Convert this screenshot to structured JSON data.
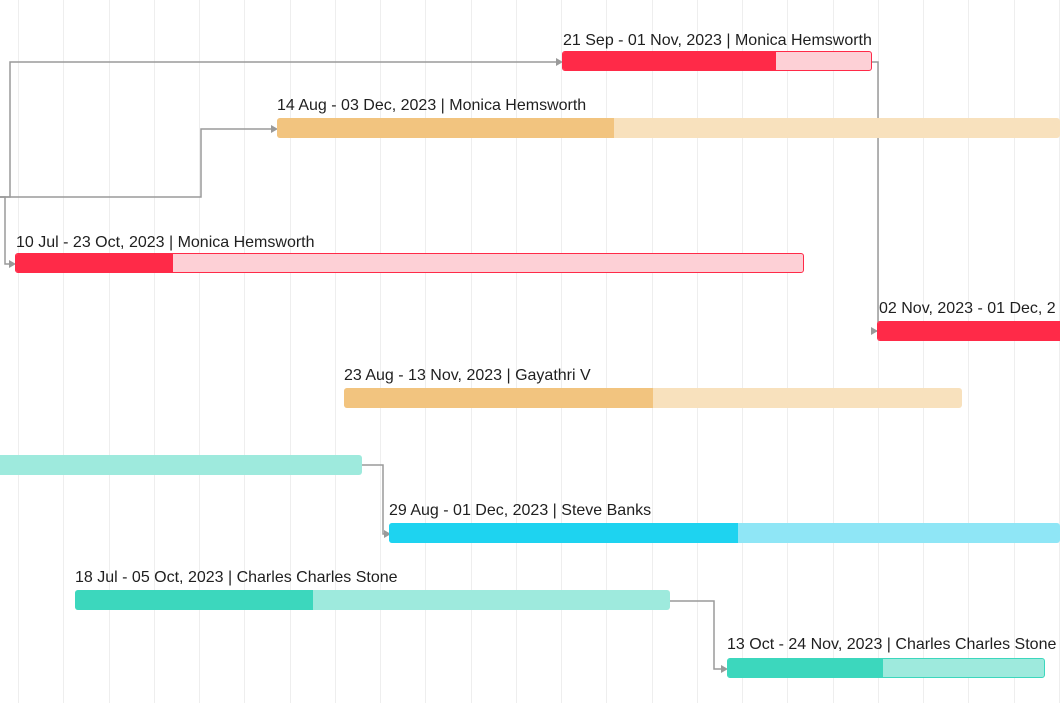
{
  "colors": {
    "red": "#ff2a48",
    "red_light": "#fdd0d6",
    "orange": "#f2c47f",
    "orange_light": "#f8e1bd",
    "teal": "#3cd7bd",
    "teal_light": "#9eeadd",
    "cyan": "#1ed3f0",
    "cyan_light": "#8fe6f6",
    "connector": "#9a9a9a",
    "gridline": "#eeeeee"
  },
  "tasks": [
    {
      "label": "21 Sep - 01 Nov, 2023 | Monica Hemsworth",
      "progress_percent": 69
    },
    {
      "label": "14 Aug - 03 Dec, 2023 | Monica Hemsworth",
      "progress_percent": 43
    },
    {
      "label": "10 Jul - 23 Oct, 2023 | Monica Hemsworth",
      "progress_percent": 20
    },
    {
      "label": "02 Nov, 2023 - 01 Dec, 2",
      "progress_percent": 100
    },
    {
      "label": "23 Aug - 13 Nov, 2023 | Gayathri V",
      "progress_percent": 50
    },
    {
      "label": "",
      "progress_percent": 0
    },
    {
      "label": "29 Aug - 01 Dec, 2023 | Steve Banks",
      "progress_percent": 52
    },
    {
      "label": "18 Jul - 05 Oct, 2023 | Charles Charles Stone",
      "progress_percent": 40
    },
    {
      "label": "13 Oct - 24 Nov, 2023 | Charles Charles Stone",
      "progress_percent": 49
    }
  ]
}
